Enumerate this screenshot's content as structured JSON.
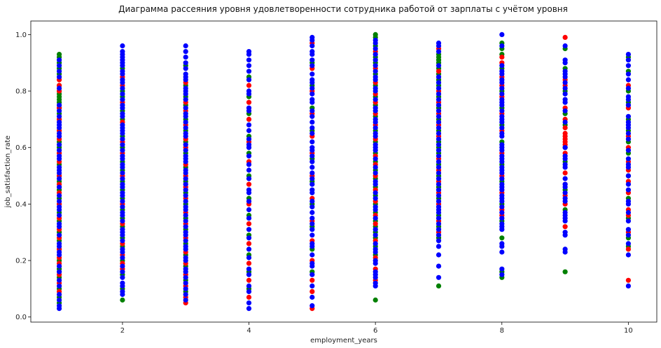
{
  "chart_data": {
    "type": "scatter",
    "title": "Диаграмма рассеяния уровня удовлетворенности сотрудника работой от зарплаты с учётом уровня",
    "xlabel": "employment_years",
    "ylabel": "job_satisfaction_rate",
    "xlim": [
      0.55,
      10.45
    ],
    "ylim": [
      -0.018,
      1.048
    ],
    "xticks": [
      2,
      4,
      6,
      8,
      10
    ],
    "yticks": [
      0.0,
      0.2,
      0.4,
      0.6,
      0.8,
      1.0
    ],
    "grid": false,
    "legend": "none",
    "colors": {
      "green": "#008000",
      "red": "#ff0000",
      "blue": "#0000ff"
    },
    "columns": [
      {
        "x": 1,
        "green": [
          0.93,
          0.92,
          0.9,
          0.88,
          0.86,
          0.82,
          0.8,
          0.79,
          0.78,
          0.77,
          0.76,
          0.74,
          0.72,
          0.7,
          0.66,
          0.62,
          0.6,
          0.58,
          0.54,
          0.5,
          0.48,
          0.45,
          0.42,
          0.4,
          0.37,
          0.34,
          0.3,
          0.27,
          0.24,
          0.2,
          0.17,
          0.14,
          0.1,
          0.07,
          0.05
        ],
        "red": [
          0.84,
          0.82,
          0.8,
          0.74,
          0.7,
          0.66,
          0.63,
          0.58,
          0.55,
          0.5,
          0.47,
          0.44,
          0.4,
          0.35,
          0.31,
          0.28,
          0.24,
          0.21,
          0.19,
          0.15,
          0.12,
          0.09
        ],
        "blue": [
          0.91,
          0.89,
          0.87,
          0.85,
          0.81,
          0.75,
          0.73,
          0.71,
          0.69,
          0.68,
          0.67,
          0.65,
          0.64,
          0.61,
          0.59,
          0.57,
          0.56,
          0.53,
          0.52,
          0.51,
          0.49,
          0.46,
          0.43,
          0.41,
          0.39,
          0.38,
          0.36,
          0.33,
          0.32,
          0.29,
          0.26,
          0.25,
          0.23,
          0.22,
          0.18,
          0.16,
          0.13,
          0.11,
          0.08,
          0.06,
          0.04,
          0.03
        ]
      },
      {
        "x": 2,
        "green": [
          0.88,
          0.8,
          0.78,
          0.73,
          0.7,
          0.64,
          0.6,
          0.55,
          0.52,
          0.48,
          0.45,
          0.42,
          0.38,
          0.35,
          0.32,
          0.28,
          0.25,
          0.2,
          0.15,
          0.1,
          0.06
        ],
        "red": [
          0.85,
          0.82,
          0.76,
          0.69,
          0.62,
          0.58,
          0.5,
          0.4,
          0.33,
          0.26,
          0.22,
          0.19,
          0.17
        ],
        "blue": [
          0.96,
          0.94,
          0.93,
          0.92,
          0.91,
          0.9,
          0.89,
          0.87,
          0.86,
          0.84,
          0.83,
          0.81,
          0.79,
          0.77,
          0.75,
          0.74,
          0.72,
          0.71,
          0.68,
          0.67,
          0.66,
          0.65,
          0.63,
          0.61,
          0.59,
          0.57,
          0.56,
          0.54,
          0.53,
          0.51,
          0.49,
          0.47,
          0.46,
          0.44,
          0.43,
          0.41,
          0.39,
          0.37,
          0.36,
          0.34,
          0.31,
          0.3,
          0.29,
          0.27,
          0.24,
          0.23,
          0.21,
          0.18,
          0.16,
          0.14,
          0.12,
          0.11,
          0.09,
          0.08
        ]
      },
      {
        "x": 3,
        "green": [
          0.89,
          0.82,
          0.78,
          0.75,
          0.7,
          0.66,
          0.62,
          0.58,
          0.53,
          0.48,
          0.44,
          0.4,
          0.35,
          0.31,
          0.26,
          0.22,
          0.18,
          0.13,
          0.09
        ],
        "red": [
          0.83,
          0.76,
          0.73,
          0.68,
          0.63,
          0.6,
          0.54,
          0.5,
          0.46,
          0.42,
          0.37,
          0.33,
          0.28,
          0.23,
          0.19,
          0.15,
          0.11,
          0.07,
          0.05
        ],
        "blue": [
          0.96,
          0.94,
          0.92,
          0.9,
          0.88,
          0.86,
          0.85,
          0.84,
          0.81,
          0.8,
          0.79,
          0.77,
          0.74,
          0.72,
          0.71,
          0.69,
          0.67,
          0.65,
          0.64,
          0.61,
          0.59,
          0.57,
          0.56,
          0.55,
          0.52,
          0.51,
          0.49,
          0.47,
          0.45,
          0.43,
          0.41,
          0.39,
          0.38,
          0.36,
          0.34,
          0.32,
          0.3,
          0.29,
          0.27,
          0.25,
          0.24,
          0.21,
          0.2,
          0.17,
          0.16,
          0.14,
          0.12,
          0.1,
          0.08,
          0.06
        ]
      },
      {
        "x": 4,
        "green": [
          0.85,
          0.78,
          0.72,
          0.64,
          0.58,
          0.5,
          0.42,
          0.36,
          0.29,
          0.22,
          0.16,
          0.1
        ],
        "red": [
          0.82,
          0.76,
          0.7,
          0.62,
          0.55,
          0.47,
          0.4,
          0.33,
          0.26,
          0.19,
          0.13,
          0.07
        ],
        "blue": [
          0.94,
          0.93,
          0.91,
          0.89,
          0.87,
          0.84,
          0.8,
          0.79,
          0.74,
          0.73,
          0.68,
          0.66,
          0.63,
          0.61,
          0.6,
          0.57,
          0.54,
          0.52,
          0.49,
          0.45,
          0.44,
          0.41,
          0.38,
          0.35,
          0.31,
          0.28,
          0.24,
          0.21,
          0.17,
          0.15,
          0.11,
          0.09,
          0.05,
          0.03
        ]
      },
      {
        "x": 5,
        "green": [
          0.9,
          0.82,
          0.74,
          0.66,
          0.56,
          0.48,
          0.4,
          0.32,
          0.24,
          0.16
        ],
        "red": [
          0.97,
          0.88,
          0.8,
          0.72,
          0.64,
          0.58,
          0.5,
          0.42,
          0.34,
          0.27,
          0.2,
          0.13,
          0.09,
          0.03
        ],
        "blue": [
          0.99,
          0.98,
          0.96,
          0.94,
          0.93,
          0.91,
          0.89,
          0.86,
          0.84,
          0.83,
          0.81,
          0.79,
          0.77,
          0.76,
          0.73,
          0.71,
          0.69,
          0.67,
          0.65,
          0.62,
          0.6,
          0.59,
          0.57,
          0.55,
          0.53,
          0.51,
          0.49,
          0.47,
          0.45,
          0.44,
          0.41,
          0.39,
          0.37,
          0.35,
          0.33,
          0.31,
          0.29,
          0.26,
          0.25,
          0.22,
          0.19,
          0.18,
          0.15,
          0.11,
          0.07,
          0.04
        ]
      },
      {
        "x": 6,
        "green": [
          1.0,
          0.99,
          0.96,
          0.92,
          0.9,
          0.86,
          0.82,
          0.78,
          0.75,
          0.71,
          0.66,
          0.62,
          0.58,
          0.55,
          0.52,
          0.49,
          0.46,
          0.43,
          0.4,
          0.37,
          0.34,
          0.32,
          0.3,
          0.28,
          0.25,
          0.22,
          0.06
        ],
        "red": [
          0.94,
          0.88,
          0.83,
          0.79,
          0.76,
          0.72,
          0.68,
          0.63,
          0.57,
          0.54,
          0.5,
          0.45,
          0.41,
          0.36,
          0.33,
          0.27,
          0.21,
          0.17,
          0.13
        ],
        "blue": [
          0.98,
          0.97,
          0.95,
          0.93,
          0.91,
          0.89,
          0.87,
          0.85,
          0.84,
          0.81,
          0.8,
          0.77,
          0.74,
          0.73,
          0.7,
          0.69,
          0.67,
          0.65,
          0.64,
          0.61,
          0.6,
          0.59,
          0.56,
          0.53,
          0.51,
          0.48,
          0.47,
          0.44,
          0.42,
          0.39,
          0.38,
          0.35,
          0.31,
          0.29,
          0.26,
          0.24,
          0.23,
          0.2,
          0.19,
          0.16,
          0.15,
          0.14,
          0.12,
          0.11
        ]
      },
      {
        "x": 7,
        "green": [
          0.93,
          0.92,
          0.91,
          0.9,
          0.88,
          0.86,
          0.84,
          0.82,
          0.78,
          0.74,
          0.7,
          0.66,
          0.62,
          0.6,
          0.58,
          0.54,
          0.5,
          0.46,
          0.42,
          0.36,
          0.32,
          0.28,
          0.11
        ],
        "red": [
          0.95,
          0.87,
          0.8,
          0.76,
          0.72,
          0.68,
          0.64,
          0.56,
          0.52,
          0.48,
          0.44,
          0.4,
          0.34,
          0.3
        ],
        "blue": [
          0.97,
          0.96,
          0.94,
          0.89,
          0.85,
          0.83,
          0.81,
          0.79,
          0.77,
          0.75,
          0.73,
          0.71,
          0.69,
          0.67,
          0.65,
          0.63,
          0.61,
          0.59,
          0.57,
          0.55,
          0.53,
          0.51,
          0.49,
          0.47,
          0.45,
          0.43,
          0.41,
          0.39,
          0.38,
          0.37,
          0.35,
          0.33,
          0.31,
          0.29,
          0.27,
          0.25,
          0.22,
          0.18,
          0.14
        ]
      },
      {
        "x": 8,
        "green": [
          0.97,
          0.95,
          0.93,
          0.88,
          0.8,
          0.74,
          0.68,
          0.62,
          0.54,
          0.48,
          0.4,
          0.34,
          0.28,
          0.16,
          0.14
        ],
        "red": [
          0.92,
          0.9,
          0.85,
          0.82,
          0.78,
          0.72,
          0.66,
          0.58,
          0.5,
          0.44,
          0.38,
          0.36
        ],
        "blue": [
          1.0,
          0.96,
          0.89,
          0.87,
          0.86,
          0.84,
          0.83,
          0.81,
          0.79,
          0.77,
          0.76,
          0.75,
          0.73,
          0.71,
          0.7,
          0.69,
          0.67,
          0.65,
          0.64,
          0.61,
          0.6,
          0.59,
          0.57,
          0.56,
          0.55,
          0.53,
          0.52,
          0.51,
          0.49,
          0.47,
          0.46,
          0.45,
          0.43,
          0.42,
          0.41,
          0.39,
          0.37,
          0.35,
          0.33,
          0.32,
          0.31,
          0.26,
          0.25,
          0.23,
          0.17,
          0.15
        ]
      },
      {
        "x": 9,
        "green": [
          0.95,
          0.88,
          0.8,
          0.72,
          0.68,
          0.6,
          0.55,
          0.45,
          0.38,
          0.16
        ],
        "red": [
          0.99,
          0.84,
          0.82,
          0.74,
          0.7,
          0.67,
          0.65,
          0.64,
          0.63,
          0.62,
          0.61,
          0.58,
          0.51,
          0.47,
          0.43,
          0.4,
          0.32
        ],
        "blue": [
          0.96,
          0.91,
          0.9,
          0.87,
          0.86,
          0.85,
          0.83,
          0.81,
          0.79,
          0.77,
          0.76,
          0.73,
          0.69,
          0.6,
          0.57,
          0.56,
          0.54,
          0.53,
          0.49,
          0.47,
          0.46,
          0.44,
          0.42,
          0.41,
          0.37,
          0.36,
          0.35,
          0.34,
          0.3,
          0.29,
          0.24,
          0.23
        ]
      },
      {
        "x": 10,
        "green": [
          0.92,
          0.87,
          0.8,
          0.76,
          0.7,
          0.66,
          0.62,
          0.58,
          0.5,
          0.42,
          0.35,
          0.28,
          0.25
        ],
        "red": [
          0.82,
          0.74,
          0.64,
          0.6,
          0.55,
          0.52,
          0.48,
          0.44,
          0.38,
          0.36,
          0.3,
          0.24,
          0.13
        ],
        "blue": [
          0.93,
          0.91,
          0.89,
          0.86,
          0.84,
          0.81,
          0.78,
          0.77,
          0.75,
          0.71,
          0.69,
          0.68,
          0.67,
          0.65,
          0.63,
          0.59,
          0.56,
          0.54,
          0.53,
          0.5,
          0.47,
          0.45,
          0.41,
          0.4,
          0.37,
          0.34,
          0.31,
          0.29,
          0.26,
          0.22,
          0.11
        ]
      }
    ]
  }
}
